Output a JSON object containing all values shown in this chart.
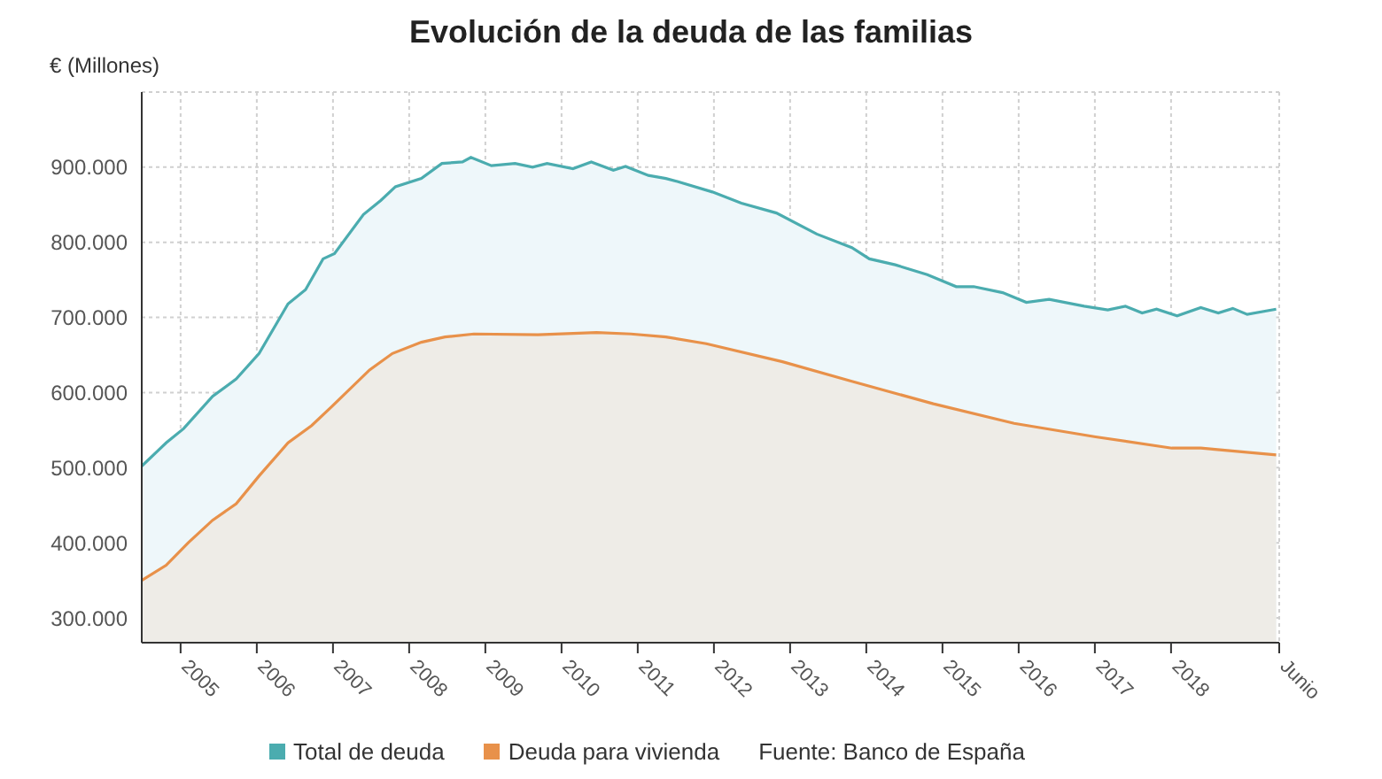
{
  "chart_data": {
    "type": "area",
    "title": "Evolución de la deuda de las familias",
    "ylabel": "€ (Millones)",
    "annotations": [
      "Fuente: Banco de España"
    ],
    "xlim": [
      2004.49,
      2019.42
    ],
    "xticks": [
      2005,
      2006,
      2007,
      2008,
      2009,
      2010,
      2011,
      2012,
      2013,
      2014,
      2015,
      2016,
      2017,
      2018,
      {
        "value": 2019.42,
        "label": "Junio"
      }
    ],
    "ylim": [
      267000,
      1000000
    ],
    "yticks": [
      {
        "value": 300000,
        "label": "300.000"
      },
      {
        "value": 400000,
        "label": "400.000"
      },
      {
        "value": 500000,
        "label": "500.000"
      },
      {
        "value": 600000,
        "label": "600.000"
      },
      {
        "value": 700000,
        "label": "700.000"
      },
      {
        "value": 800000,
        "label": "800.000"
      },
      {
        "value": 900000,
        "label": "900.000"
      }
    ],
    "grid": true,
    "legend": "bottom",
    "line_style": "solid",
    "series": [
      {
        "name": "Total de deuda",
        "color": "#4bacaf",
        "x": [
          2004.49,
          2004.81,
          2005.04,
          2005.42,
          2005.73,
          2006.03,
          2006.41,
          2006.64,
          2006.87,
          2007.02,
          2007.4,
          2007.63,
          2007.82,
          2008.16,
          2008.43,
          2008.7,
          2008.81,
          2009.08,
          2009.39,
          2009.62,
          2009.81,
          2010.15,
          2010.39,
          2010.68,
          2010.84,
          2011.14,
          2011.37,
          2011.52,
          2011.98,
          2012.36,
          2012.82,
          2013.35,
          2013.81,
          2014.04,
          2014.38,
          2014.8,
          2015.18,
          2015.41,
          2015.79,
          2016.1,
          2016.4,
          2016.86,
          2017.17,
          2017.4,
          2017.62,
          2017.81,
          2018.08,
          2018.39,
          2018.62,
          2018.81,
          2019.0,
          2019.38
        ],
        "values": [
          502000,
          533000,
          552000,
          595000,
          618000,
          652000,
          718000,
          737000,
          778000,
          785000,
          837000,
          856000,
          874000,
          885000,
          905000,
          907000,
          913000,
          902000,
          905000,
          900000,
          905000,
          898000,
          907000,
          896000,
          901000,
          889000,
          885000,
          881000,
          867000,
          852000,
          839000,
          811000,
          793000,
          778000,
          770000,
          757000,
          741000,
          741000,
          733000,
          720000,
          724000,
          715000,
          710000,
          715000,
          706000,
          711000,
          702000,
          713000,
          706000,
          712000,
          704000,
          711000
        ]
      },
      {
        "name": "Deuda para vivienda",
        "color": "#e8914a",
        "x": [
          2004.49,
          2004.81,
          2005.1,
          2005.42,
          2005.73,
          2006.03,
          2006.41,
          2006.72,
          2006.98,
          2007.48,
          2007.78,
          2008.16,
          2008.47,
          2008.85,
          2009.69,
          2010.46,
          2010.91,
          2011.37,
          2011.9,
          2012.9,
          2013.81,
          2014.88,
          2015.94,
          2017.01,
          2018.01,
          2018.39,
          2019.38
        ],
        "values": [
          350000,
          370000,
          400000,
          430000,
          452000,
          489000,
          533000,
          556000,
          581000,
          630000,
          652000,
          667000,
          674000,
          678000,
          677000,
          680000,
          678000,
          674000,
          665000,
          641000,
          615000,
          585000,
          559000,
          541000,
          526000,
          526000,
          517000
        ]
      }
    ]
  }
}
